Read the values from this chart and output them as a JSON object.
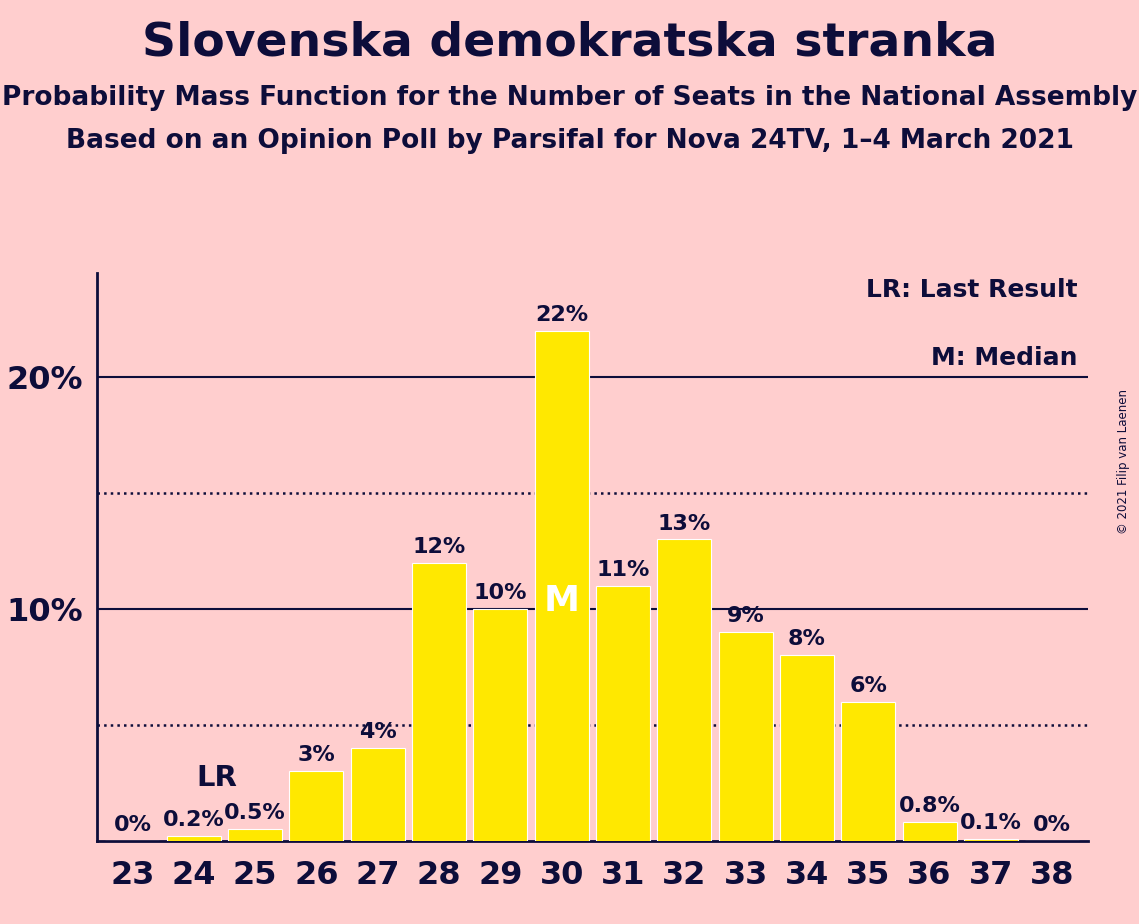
{
  "title": "Slovenska demokratska stranka",
  "subtitle1": "Probability Mass Function for the Number of Seats in the National Assembly",
  "subtitle2": "Based on an Opinion Poll by Parsifal for Nova 24TV, 1–4 March 2021",
  "copyright": "© 2021 Filip van Laenen",
  "seats": [
    23,
    24,
    25,
    26,
    27,
    28,
    29,
    30,
    31,
    32,
    33,
    34,
    35,
    36,
    37,
    38
  ],
  "values": [
    0.0,
    0.2,
    0.5,
    3.0,
    4.0,
    12.0,
    10.0,
    22.0,
    11.0,
    13.0,
    9.0,
    8.0,
    6.0,
    0.8,
    0.1,
    0.0
  ],
  "labels": [
    "0%",
    "0.2%",
    "0.5%",
    "3%",
    "4%",
    "12%",
    "10%",
    "22%",
    "11%",
    "13%",
    "9%",
    "8%",
    "6%",
    "0.8%",
    "0.1%",
    "0%"
  ],
  "bar_color": "#FFE800",
  "background_color": "#FFCECE",
  "text_color": "#0D0D3A",
  "lr_seat": 25,
  "median_seat": 30,
  "dotted_lines": [
    5.0,
    15.0
  ],
  "ylim": [
    0,
    24.5
  ],
  "title_fontsize": 34,
  "subtitle_fontsize": 19,
  "label_fontsize": 16,
  "tick_fontsize": 23,
  "legend_fontsize": 18
}
